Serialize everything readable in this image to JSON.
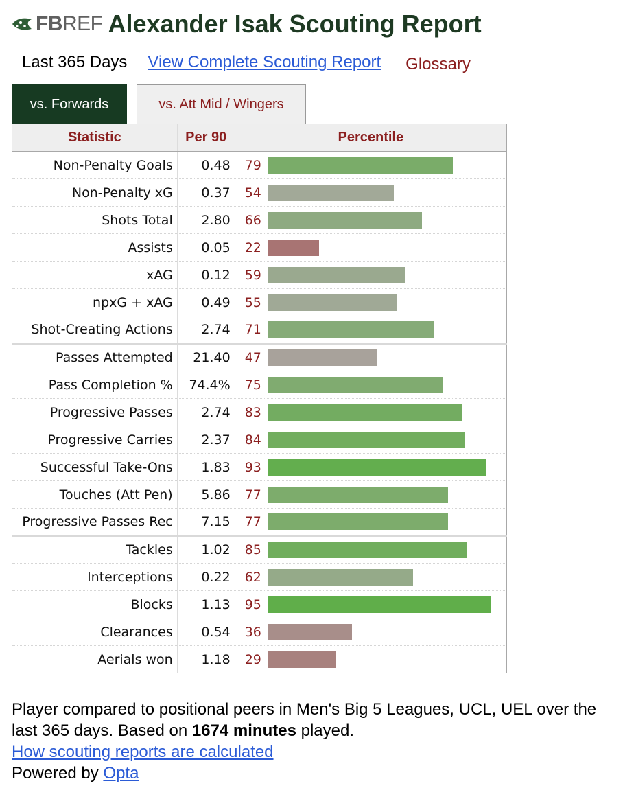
{
  "header": {
    "logo_text_bold": "FB",
    "logo_text_light": "REF",
    "title": "Alexander Isak Scouting Report"
  },
  "subnav": {
    "period": "Last 365 Days",
    "full_report_link": "View Complete Scouting Report",
    "glossary": "Glossary"
  },
  "tabs": [
    {
      "label": "vs. Forwards",
      "active": true
    },
    {
      "label": "vs. Att Mid / Wingers",
      "active": false
    }
  ],
  "table": {
    "headers": {
      "statistic": "Statistic",
      "per90": "Per 90",
      "percentile": "Percentile"
    },
    "groups": [
      [
        {
          "stat": "Non-Penalty Goals",
          "per90": "0.48",
          "pct": 79
        },
        {
          "stat": "Non-Penalty xG",
          "per90": "0.37",
          "pct": 54
        },
        {
          "stat": "Shots Total",
          "per90": "2.80",
          "pct": 66
        },
        {
          "stat": "Assists",
          "per90": "0.05",
          "pct": 22
        },
        {
          "stat": "xAG",
          "per90": "0.12",
          "pct": 59
        },
        {
          "stat": "npxG + xAG",
          "per90": "0.49",
          "pct": 55
        },
        {
          "stat": "Shot-Creating Actions",
          "per90": "2.74",
          "pct": 71
        }
      ],
      [
        {
          "stat": "Passes Attempted",
          "per90": "21.40",
          "pct": 47
        },
        {
          "stat": "Pass Completion %",
          "per90": "74.4%",
          "pct": 75
        },
        {
          "stat": "Progressive Passes",
          "per90": "2.74",
          "pct": 83
        },
        {
          "stat": "Progressive Carries",
          "per90": "2.37",
          "pct": 84
        },
        {
          "stat": "Successful Take-Ons",
          "per90": "1.83",
          "pct": 93
        },
        {
          "stat": "Touches (Att Pen)",
          "per90": "5.86",
          "pct": 77
        },
        {
          "stat": "Progressive Passes Rec",
          "per90": "7.15",
          "pct": 77
        }
      ],
      [
        {
          "stat": "Tackles",
          "per90": "1.02",
          "pct": 85
        },
        {
          "stat": "Interceptions",
          "per90": "0.22",
          "pct": 62
        },
        {
          "stat": "Blocks",
          "per90": "1.13",
          "pct": 95
        },
        {
          "stat": "Clearances",
          "per90": "0.54",
          "pct": 36
        },
        {
          "stat": "Aerials won",
          "per90": "1.18",
          "pct": 29
        }
      ]
    ]
  },
  "footer": {
    "note_prefix": "Player compared to positional peers in Men's Big 5 Leagues, UCL, UEL over the last 365 days. Based on ",
    "minutes": "1674 minutes",
    "note_suffix": " played.",
    "how_link": "How scouting reports are calculated",
    "powered_prefix": "Powered by ",
    "powered_link": "Opta"
  },
  "colors": {
    "title_green": "#1e3a23",
    "tab_active_bg": "#173a22",
    "header_red": "#8b1f1f",
    "link_blue": "#2b5bd6"
  }
}
